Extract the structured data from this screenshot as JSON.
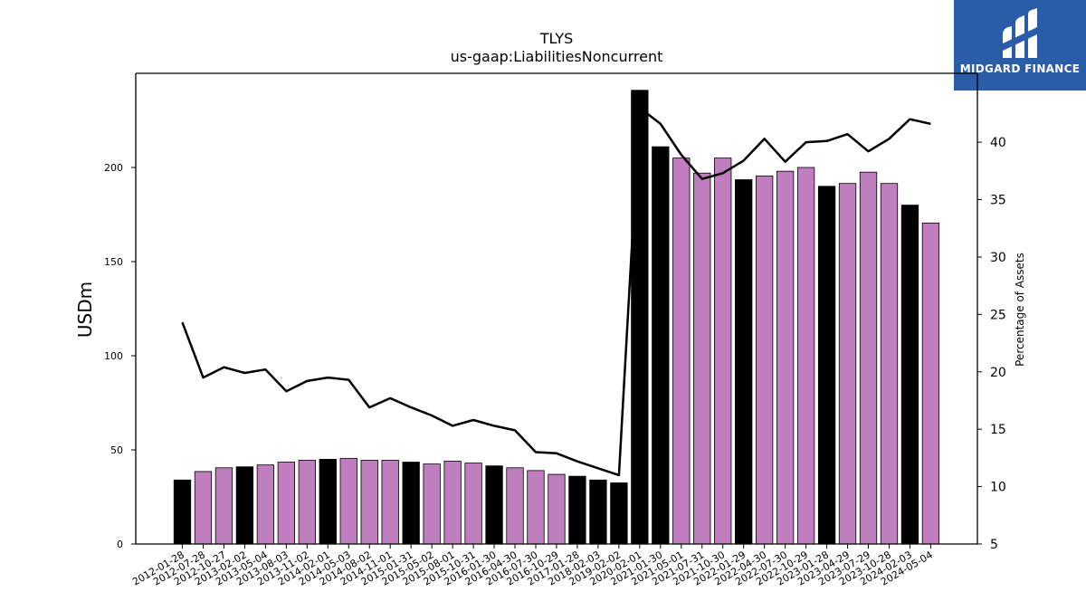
{
  "brand": {
    "name": "MIDGARD FINANCE",
    "bg_color": "#2b5ca8"
  },
  "chart_data": {
    "type": "bar",
    "title": "TLYS",
    "subtitle": "us-gaap:LiabilitiesNoncurrent",
    "ylabel": "USDm",
    "y2label": "Percentage of Assets",
    "ylim": [
      0,
      250
    ],
    "y2lim": [
      5,
      46
    ],
    "yticks": [
      0,
      50,
      100,
      150,
      200
    ],
    "y2ticks": [
      5,
      10,
      15,
      20,
      25,
      30,
      35,
      40
    ],
    "colors": {
      "q4_bar": "#000000",
      "other_bar": "#bf7fbf",
      "line": "#000000"
    },
    "categories": [
      "2012-01-28",
      "2012-07-28",
      "2012-10-27",
      "2013-02-02",
      "2013-05-04",
      "2013-08-03",
      "2013-11-02",
      "2014-02-01",
      "2014-05-03",
      "2014-08-02",
      "2014-11-01",
      "2015-01-31",
      "2015-05-02",
      "2015-08-01",
      "2015-10-31",
      "2016-01-30",
      "2016-04-30",
      "2016-07-30",
      "2016-10-29",
      "2017-01-28",
      "2018-02-03",
      "2019-02-02",
      "2020-02-01",
      "2021-01-30",
      "2021-05-01",
      "2021-07-31",
      "2021-10-30",
      "2022-01-29",
      "2022-04-30",
      "2022-07-30",
      "2022-10-29",
      "2023-01-28",
      "2023-04-29",
      "2023-07-29",
      "2023-10-28",
      "2024-02-03",
      "2024-05-04"
    ],
    "bar_values": [
      34,
      38.5,
      40.5,
      41,
      42,
      43.5,
      44.5,
      45,
      45.5,
      44.5,
      44.5,
      43.5,
      42.5,
      44,
      43,
      41.5,
      40.5,
      39,
      37,
      36,
      34,
      32.5,
      241,
      211,
      205,
      197,
      205,
      193.5,
      195.5,
      198,
      200,
      190,
      191.5,
      197.5,
      191.5,
      180,
      170.5
    ],
    "bar_q4": [
      true,
      false,
      false,
      true,
      false,
      false,
      false,
      true,
      false,
      false,
      false,
      true,
      false,
      false,
      false,
      true,
      false,
      false,
      false,
      true,
      true,
      true,
      true,
      true,
      false,
      false,
      false,
      true,
      false,
      false,
      false,
      true,
      false,
      false,
      false,
      true,
      false
    ],
    "pct_values": [
      24.3,
      19.5,
      20.4,
      19.9,
      20.2,
      18.3,
      19.2,
      19.5,
      19.3,
      16.9,
      17.7,
      16.9,
      16.2,
      15.3,
      15.8,
      15.3,
      14.9,
      13.0,
      12.9,
      12.2,
      11.6,
      11.0,
      43.0,
      41.6,
      38.9,
      36.8,
      37.3,
      38.4,
      40.3,
      38.3,
      40.0,
      40.1,
      40.7,
      39.2,
      40.3,
      42.0,
      41.6
    ]
  }
}
